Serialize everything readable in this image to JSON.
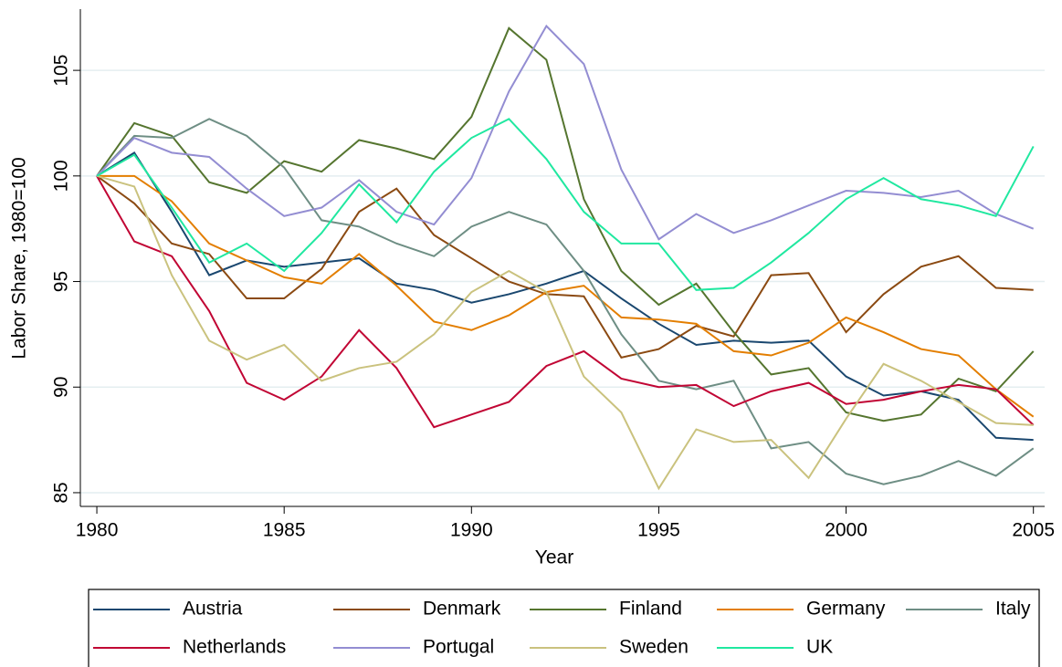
{
  "chart_data": {
    "type": "line",
    "x_label": "Year",
    "y_label": "Labor Share, 1980=100",
    "x": [
      1980,
      1981,
      1982,
      1983,
      1984,
      1985,
      1986,
      1987,
      1988,
      1989,
      1990,
      1991,
      1992,
      1993,
      1994,
      1995,
      1996,
      1997,
      1998,
      1999,
      2000,
      2001,
      2002,
      2003,
      2004,
      2005
    ],
    "xlim": [
      1979.56,
      2005.3
    ],
    "xticks": [
      1980,
      1985,
      1990,
      1995,
      2000,
      2005
    ],
    "ylim": [
      84.35,
      107.9
    ],
    "yticks": [
      85,
      90,
      95,
      100,
      105
    ],
    "grid": true,
    "series": [
      {
        "name": "Austria",
        "color": "#1a476f",
        "values": [
          100,
          101.1,
          98.3,
          95.3,
          96.0,
          95.7,
          95.9,
          96.1,
          94.9,
          94.6,
          94.0,
          94.4,
          94.9,
          95.5,
          94.2,
          93.0,
          92.0,
          92.2,
          92.1,
          92.2,
          90.5,
          89.6,
          89.8,
          89.4,
          87.6,
          87.5
        ]
      },
      {
        "name": "Denmark",
        "color": "#8b4a12",
        "values": [
          100,
          98.7,
          96.8,
          96.3,
          94.2,
          94.2,
          95.6,
          98.3,
          99.4,
          97.2,
          96.1,
          95.0,
          94.4,
          94.3,
          91.4,
          91.8,
          92.9,
          92.4,
          95.3,
          95.4,
          92.6,
          94.4,
          95.7,
          96.2,
          94.7,
          94.6
        ]
      },
      {
        "name": "Finland",
        "color": "#55752f",
        "values": [
          100,
          102.5,
          101.9,
          99.7,
          99.2,
          100.7,
          100.2,
          101.7,
          101.3,
          100.8,
          102.8,
          107.0,
          105.5,
          98.9,
          95.5,
          93.9,
          94.9,
          92.6,
          90.6,
          90.9,
          88.8,
          88.4,
          88.7,
          90.4,
          89.8,
          91.7
        ]
      },
      {
        "name": "Germany",
        "color": "#e37e00",
        "values": [
          100,
          100,
          98.8,
          96.8,
          96.0,
          95.2,
          94.9,
          96.3,
          94.8,
          93.1,
          92.7,
          93.4,
          94.5,
          94.8,
          93.3,
          93.2,
          93.0,
          91.7,
          91.5,
          92.1,
          93.3,
          92.6,
          91.8,
          91.5,
          89.9,
          88.6
        ]
      },
      {
        "name": "Italy",
        "color": "#6e8e84",
        "values": [
          100,
          101.9,
          101.8,
          102.7,
          101.9,
          100.4,
          97.9,
          97.6,
          96.8,
          96.2,
          97.6,
          98.3,
          97.7,
          95.5,
          92.5,
          90.3,
          89.9,
          90.3,
          87.1,
          87.4,
          85.9,
          85.4,
          85.8,
          86.5,
          85.8,
          87.1
        ]
      },
      {
        "name": "Netherlands",
        "color": "#c10534",
        "values": [
          100,
          96.9,
          96.2,
          93.6,
          90.2,
          89.4,
          90.5,
          92.7,
          90.9,
          88.1,
          88.7,
          89.3,
          91.0,
          91.7,
          90.4,
          90.0,
          90.1,
          89.1,
          89.8,
          90.2,
          89.2,
          89.4,
          89.8,
          90.1,
          89.9,
          88.2
        ]
      },
      {
        "name": "Portugal",
        "color": "#938dd2",
        "values": [
          100,
          101.8,
          101.1,
          100.9,
          99.4,
          98.1,
          98.5,
          99.8,
          98.3,
          97.7,
          99.9,
          104.0,
          107.1,
          105.3,
          100.3,
          97.0,
          98.2,
          97.3,
          97.9,
          98.6,
          99.3,
          99.2,
          99.0,
          99.3,
          98.2,
          97.5
        ]
      },
      {
        "name": "Sweden",
        "color": "#cac27e",
        "values": [
          100,
          99.5,
          95.3,
          92.2,
          91.3,
          92.0,
          90.3,
          90.9,
          91.2,
          92.5,
          94.5,
          95.5,
          94.5,
          90.5,
          88.8,
          85.2,
          88.0,
          87.4,
          87.5,
          85.7,
          88.5,
          91.1,
          90.3,
          89.3,
          88.3,
          88.2
        ]
      },
      {
        "name": "UK",
        "color": "#20e8a0",
        "values": [
          100,
          101.0,
          98.5,
          95.9,
          96.8,
          95.5,
          97.3,
          99.6,
          97.8,
          100.2,
          101.8,
          102.7,
          100.8,
          98.3,
          96.8,
          96.8,
          94.6,
          94.7,
          95.9,
          97.3,
          98.9,
          99.9,
          98.9,
          98.6,
          98.1,
          101.4
        ]
      }
    ]
  }
}
